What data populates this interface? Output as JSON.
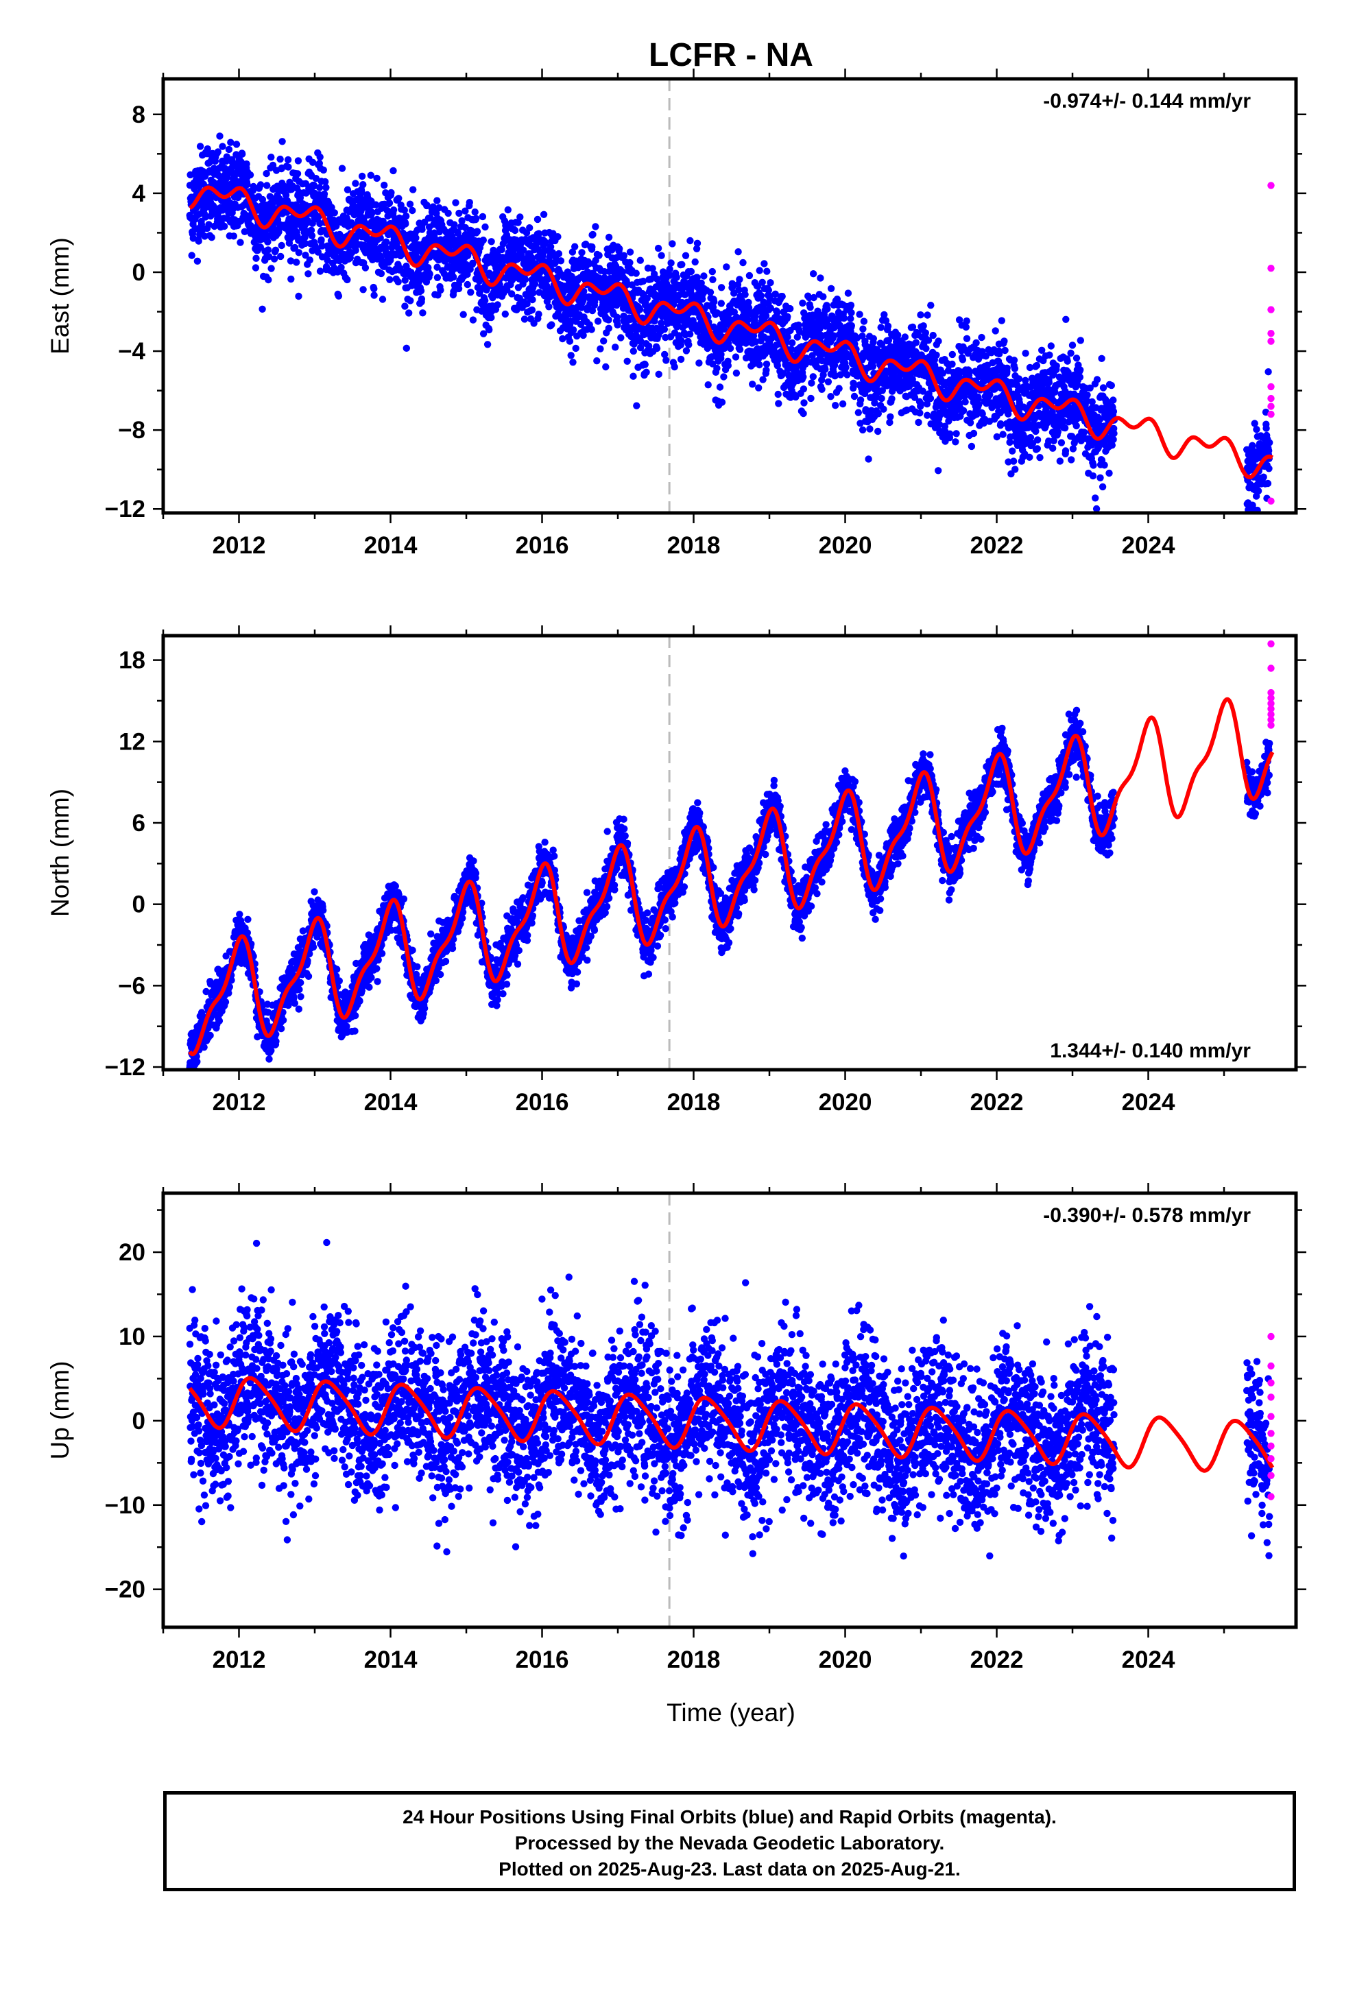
{
  "title": "LCFR - NA",
  "xlabel": "Time (year)",
  "footer": {
    "line1": "24 Hour Positions Using Final Orbits (blue) and Rapid Orbits (magenta).",
    "line2": "Processed by the Nevada Geodetic Laboratory.",
    "line3": "Plotted on 2025-Aug-23. Last data on 2025-Aug-21."
  },
  "colors": {
    "final": "#0000ff",
    "rapid": "#ff00ff",
    "model": "#ff0000",
    "event_line": "#bbbbbb"
  },
  "chart_data": [
    {
      "type": "scatter",
      "ylabel": "East (mm)",
      "rate_text": "-0.974+/- 0.144 mm/yr",
      "rate_placement": "top-right",
      "xlim": [
        2011.0,
        2025.95
      ],
      "ylim": [
        -12.2,
        9.8
      ],
      "xticks": [
        2012,
        2014,
        2016,
        2018,
        2020,
        2022,
        2024
      ],
      "yticks": [
        8,
        4,
        0,
        -4,
        -8,
        -12
      ],
      "ytick_labels": [
        "8",
        "4",
        "0",
        "−4",
        "−8",
        "−12"
      ],
      "event_line_year": 2017.68,
      "data_span_final": [
        [
          2011.35,
          2023.55
        ],
        [
          2025.3,
          2025.6
        ]
      ],
      "data_span_rapid": [
        2025.6,
        2025.64
      ],
      "trend_per_year": -0.974,
      "model": {
        "offset": 4.2,
        "slope": -0.974,
        "annual_amp": 0.55,
        "annual_phase": 2.4,
        "semi_amp": 0.45,
        "semi_phase": 0.8
      },
      "scatter_sd": 1.2,
      "rapid_values": [
        4.4,
        0.2,
        -1.9,
        -3.1,
        -3.5,
        -5.8,
        -6.4,
        -6.8,
        -7.2,
        -11.6
      ]
    },
    {
      "type": "scatter",
      "ylabel": "North (mm)",
      "rate_text": "1.344+/- 0.140 mm/yr",
      "rate_placement": "bottom-right",
      "xlim": [
        2011.0,
        2025.95
      ],
      "ylim": [
        -12.2,
        19.8
      ],
      "xticks": [
        2012,
        2014,
        2016,
        2018,
        2020,
        2022,
        2024
      ],
      "yticks": [
        18,
        12,
        6,
        0,
        -6,
        -12
      ],
      "ytick_labels": [
        "18",
        "12",
        "6",
        "0",
        "−6",
        "−12"
      ],
      "event_line_year": 2017.68,
      "data_span_final": [
        [
          2011.35,
          2023.55
        ],
        [
          2025.3,
          2025.6
        ]
      ],
      "data_span_rapid": [
        2025.6,
        2025.64
      ],
      "trend_per_year": 1.344,
      "model": {
        "offset": -7.3,
        "slope": 1.344,
        "annual_amp": 3.3,
        "annual_phase": 1.75,
        "semi_amp": 1.2,
        "semi_phase": 0.5
      },
      "scatter_sd": 0.9,
      "rapid_values": [
        19.2,
        17.4,
        15.6,
        15.2,
        14.8,
        14.4,
        14.0,
        13.6,
        13.2
      ]
    },
    {
      "type": "scatter",
      "ylabel": "Up (mm)",
      "rate_text": "-0.390+/- 0.578 mm/yr",
      "rate_placement": "top-right",
      "xlim": [
        2011.0,
        2025.95
      ],
      "ylim": [
        -24.5,
        27.0
      ],
      "xticks": [
        2012,
        2014,
        2016,
        2018,
        2020,
        2022,
        2024
      ],
      "yticks": [
        20,
        10,
        0,
        -10,
        -20
      ],
      "ytick_labels": [
        "20",
        "10",
        "0",
        "−10",
        "−20"
      ],
      "event_line_year": 2017.68,
      "data_span_final": [
        [
          2011.35,
          2023.55
        ],
        [
          2025.3,
          2025.6
        ]
      ],
      "data_span_rapid": [
        2025.6,
        2025.64
      ],
      "trend_per_year": -0.39,
      "model": {
        "offset": 2.5,
        "slope": -0.39,
        "annual_amp": 2.9,
        "annual_phase": 0.3,
        "semi_amp": 0.5,
        "semi_phase": 1.0
      },
      "scatter_sd": 4.6,
      "rapid_values": [
        10.0,
        6.5,
        4.5,
        2.8,
        0.5,
        -1.5,
        -3.0,
        -4.5,
        -6.5,
        -9.0
      ]
    }
  ]
}
